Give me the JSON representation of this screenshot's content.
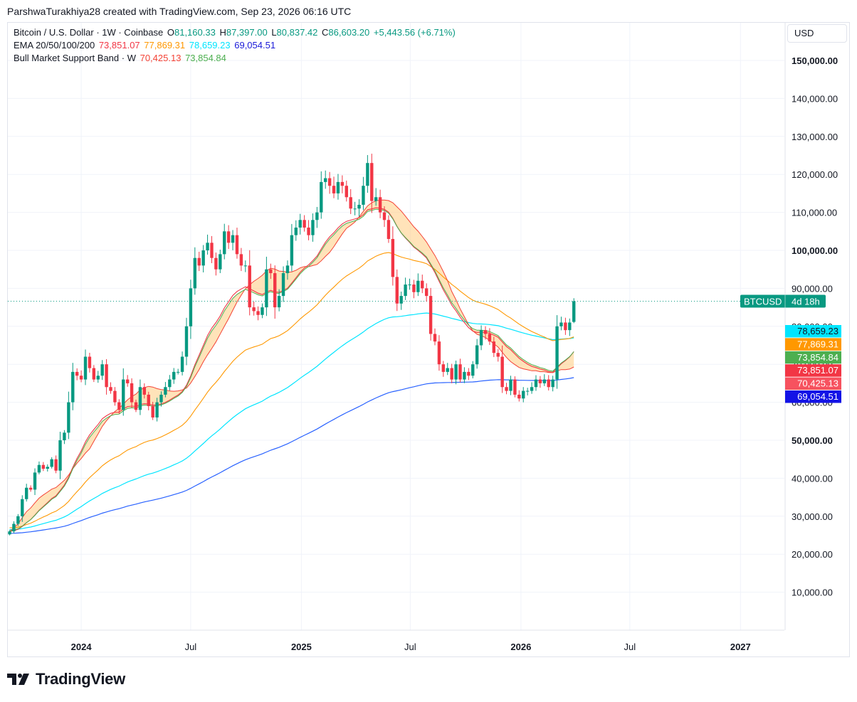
{
  "header": {
    "credit": "ParshwaTurakhiya28 created with TradingView.com, Sep 23, 2026 06:16 UTC"
  },
  "legend": {
    "symbol_line": {
      "title": "Bitcoin / U.S. Dollar · 1W · Coinbase",
      "o_label": "O",
      "o_value": "81,160.33",
      "h_label": "H",
      "h_value": "87,397.00",
      "l_label": "L",
      "l_value": "80,837.42",
      "c_label": "C",
      "c_value": "86,603.20",
      "change": "+5,443.56 (+6.71%)"
    },
    "ema_line": {
      "title": "EMA 20/50/100/200",
      "v20": "73,851.07",
      "v50": "77,869.31",
      "v100": "78,659.23",
      "v200": "69,054.51"
    },
    "band_line": {
      "title": "Bull Market Support Band · W",
      "v1": "70,425.13",
      "v2": "73,854.84"
    }
  },
  "currency": "USD",
  "brand": "TradingView",
  "colors": {
    "up": "#089981",
    "down": "#f23645",
    "ema20": "#f23645",
    "ema50": "#ff9800",
    "ema100": "#00e5ff",
    "ema200": "#2962ff",
    "band_sma": "#f44336",
    "band_ema": "#4caf50",
    "band_fill": "#ffcc80",
    "grid": "#f0f3fa"
  },
  "chart_data": {
    "type": "candlestick",
    "y_axis": {
      "scale": "linear",
      "range": [
        0,
        160000
      ],
      "ticks": [
        {
          "value": 10000,
          "label": "10,000.00",
          "bold": false
        },
        {
          "value": 20000,
          "label": "20,000.00",
          "bold": false
        },
        {
          "value": 30000,
          "label": "30,000.00",
          "bold": false
        },
        {
          "value": 40000,
          "label": "40,000.00",
          "bold": false
        },
        {
          "value": 50000,
          "label": "50,000.00",
          "bold": true
        },
        {
          "value": 60000,
          "label": "60,000.00",
          "bold": false
        },
        {
          "value": 70000,
          "label": "70,000.00",
          "bold": false
        },
        {
          "value": 80000,
          "label": "80,000.00",
          "bold": false
        },
        {
          "value": 90000,
          "label": "90,000.00",
          "bold": false
        },
        {
          "value": 100000,
          "label": "100,000.00",
          "bold": true
        },
        {
          "value": 110000,
          "label": "110,000.00",
          "bold": false
        },
        {
          "value": 120000,
          "label": "120,000.00",
          "bold": false
        },
        {
          "value": 130000,
          "label": "130,000.00",
          "bold": false
        },
        {
          "value": 140000,
          "label": "140,000.00",
          "bold": false
        },
        {
          "value": 150000,
          "label": "150,000.00",
          "bold": true
        }
      ]
    },
    "x_axis": {
      "range": [
        "2023-09-01",
        "2027-03-15"
      ],
      "ticks": [
        {
          "date": "2024-01-01",
          "label": "2024",
          "bold": true
        },
        {
          "date": "2024-07-01",
          "label": "Jul",
          "bold": false
        },
        {
          "date": "2025-01-01",
          "label": "2025",
          "bold": true
        },
        {
          "date": "2025-07-01",
          "label": "Jul",
          "bold": false
        },
        {
          "date": "2026-01-01",
          "label": "2026",
          "bold": true
        },
        {
          "date": "2026-07-01",
          "label": "Jul",
          "bold": false
        },
        {
          "date": "2027-01-01",
          "label": "2027",
          "bold": true
        }
      ]
    },
    "price_path": {
      "start_date": "2023-09-04",
      "interval": "1W",
      "closes": [
        26000,
        28000,
        30000,
        34500,
        37500,
        37000,
        41500,
        43500,
        42500,
        43000,
        45000,
        42000,
        50000,
        52000,
        60000,
        68000,
        67000,
        66000,
        72000,
        69000,
        66000,
        67000,
        70000,
        64000,
        63000,
        60000,
        58000,
        66000,
        65000,
        60000,
        58000,
        64000,
        62000,
        59000,
        56000,
        60000,
        62000,
        64000,
        66000,
        68000,
        68000,
        72000,
        80000,
        90000,
        98000,
        96000,
        100000,
        102000,
        98000,
        95000,
        99000,
        105000,
        102000,
        104000,
        99000,
        96000,
        96000,
        85000,
        84000,
        83000,
        85000,
        95000,
        94000,
        85000,
        88000,
        94000,
        96000,
        104000,
        106000,
        108000,
        106000,
        104000,
        108000,
        110000,
        118000,
        119000,
        117000,
        115000,
        118000,
        117000,
        114000,
        111000,
        111000,
        112000,
        117000,
        123000,
        113000,
        114000,
        110000,
        108000,
        103000,
        93000,
        86000,
        88000,
        91000,
        91000,
        89000,
        92000,
        90000,
        88000,
        78000,
        76000,
        70000,
        68000,
        69000,
        66000,
        70000,
        66000,
        68000,
        67000,
        70000,
        75000,
        79000,
        78000,
        76000,
        73000,
        72000,
        64000,
        63000,
        66000,
        62000,
        61000,
        63000,
        63000,
        64000,
        66000,
        65000,
        66000,
        64000,
        66000,
        80000,
        81000,
        79000,
        81000,
        86603
      ]
    },
    "series": [
      {
        "name": "EMA 20",
        "values": [
          73851.07
        ]
      },
      {
        "name": "EMA 50",
        "values": [
          77869.31
        ]
      },
      {
        "name": "EMA 100",
        "values": [
          78659.23
        ]
      },
      {
        "name": "EMA 200",
        "values": [
          69054.51
        ]
      },
      {
        "name": "Bull Market Support Band",
        "values": [
          70425.13,
          73854.84
        ]
      }
    ],
    "last_price": {
      "label": "BTCUSD",
      "countdown": "4d 18h",
      "value": 86603.2
    },
    "price_labels": [
      {
        "text": "78,659.23",
        "color": "#00e5ff",
        "text_color": "#131722"
      },
      {
        "text": "77,869.31",
        "color": "#ff9800",
        "text_color": "#ffffff"
      },
      {
        "text": "73,854.84",
        "color": "#4caf50",
        "text_color": "#ffffff"
      },
      {
        "text": "73,851.07",
        "color": "#f23645",
        "text_color": "#ffffff"
      },
      {
        "text": "70,425.13",
        "color": "#f7525f",
        "text_color": "#ffffff"
      },
      {
        "text": "69,054.51",
        "color": "#1313e6",
        "text_color": "#ffffff"
      }
    ]
  }
}
